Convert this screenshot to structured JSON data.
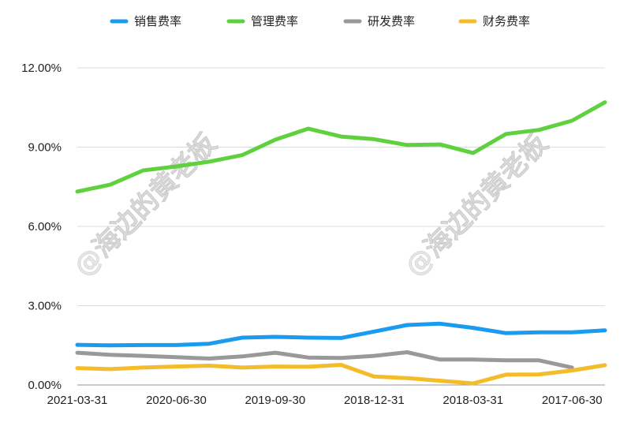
{
  "chart_data": {
    "type": "line",
    "title": "",
    "xlabel": "",
    "ylabel": "",
    "ylim": [
      0,
      0.12
    ],
    "yticks": [
      "0.00%",
      "3.00%",
      "6.00%",
      "9.00%",
      "12.00%"
    ],
    "ytick_values": [
      0,
      0.03,
      0.06,
      0.09,
      0.12
    ],
    "x_tick_labels": [
      "2021-03-31",
      "2020-06-30",
      "2019-09-30",
      "2018-12-31",
      "2018-03-31",
      "2017-06-30"
    ],
    "x_tick_indices": [
      0,
      3,
      6,
      9,
      12,
      15
    ],
    "x": [
      "2021-03-31",
      "2020-12-31",
      "2020-09-30",
      "2020-06-30",
      "2020-03-31",
      "2019-12-31",
      "2019-09-30",
      "2019-06-30",
      "2019-03-31",
      "2018-12-31",
      "2018-09-30",
      "2018-06-30",
      "2018-03-31",
      "2017-12-31",
      "2017-09-30",
      "2017-06-30",
      "2017-03-31"
    ],
    "grid": true,
    "legend_position": "top",
    "series": [
      {
        "name": "销售费率",
        "color": "#1a9bf0",
        "values": [
          0.0152,
          0.015,
          0.0151,
          0.0151,
          0.0156,
          0.0179,
          0.0182,
          0.0179,
          0.0178,
          0.0202,
          0.0227,
          0.0232,
          0.0216,
          0.0196,
          0.0199,
          0.0199,
          0.0207
        ]
      },
      {
        "name": "管理费率",
        "color": "#5fd13f",
        "values": [
          0.0732,
          0.0758,
          0.0812,
          0.0827,
          0.0845,
          0.087,
          0.0928,
          0.097,
          0.094,
          0.093,
          0.0908,
          0.091,
          0.0878,
          0.095,
          0.0965,
          0.1,
          0.107
        ]
      },
      {
        "name": "研发费率",
        "color": "#999999",
        "values": [
          0.0122,
          0.0114,
          0.011,
          0.0105,
          0.01,
          0.0108,
          0.0122,
          0.0104,
          0.0102,
          0.011,
          0.0124,
          0.0096,
          0.0096,
          0.0093,
          0.0093,
          0.0066,
          null
        ]
      },
      {
        "name": "财务费率",
        "color": "#f5bc2a",
        "values": [
          0.0064,
          0.006,
          0.0066,
          0.007,
          0.0073,
          0.0066,
          0.007,
          0.0069,
          0.0076,
          0.0032,
          0.0026,
          0.0016,
          0.0006,
          0.0039,
          0.004,
          0.0055,
          0.0075
        ]
      }
    ],
    "watermark": "@海边的黄老板"
  }
}
